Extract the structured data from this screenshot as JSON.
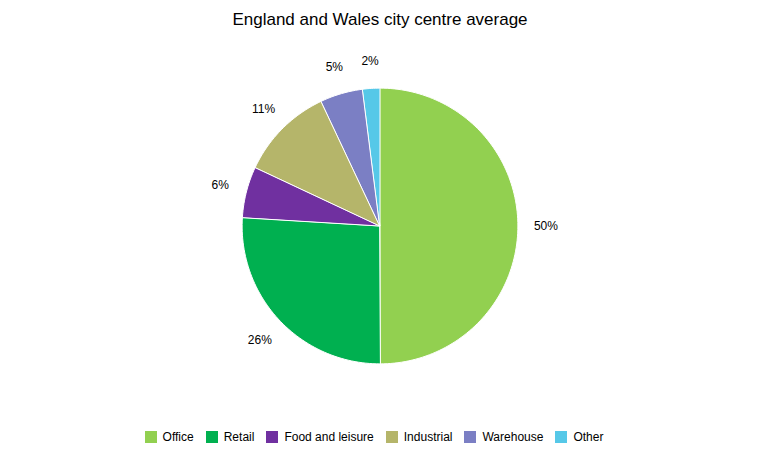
{
  "chart_data": {
    "type": "pie",
    "title": "England and Wales city centre average",
    "categories": [
      "Office",
      "Retail",
      "Food and leisure",
      "Industrial",
      "Warehouse",
      "Other"
    ],
    "values": [
      50,
      26,
      6,
      11,
      5,
      2
    ],
    "value_labels": [
      "50%",
      "26%",
      "6%",
      "11%",
      "5%",
      "2%"
    ],
    "colors": [
      "#92d050",
      "#00b050",
      "#7030a0",
      "#b5b56a",
      "#7b7fc4",
      "#56c8e8"
    ],
    "data_labels": true,
    "legend": "bottom"
  }
}
